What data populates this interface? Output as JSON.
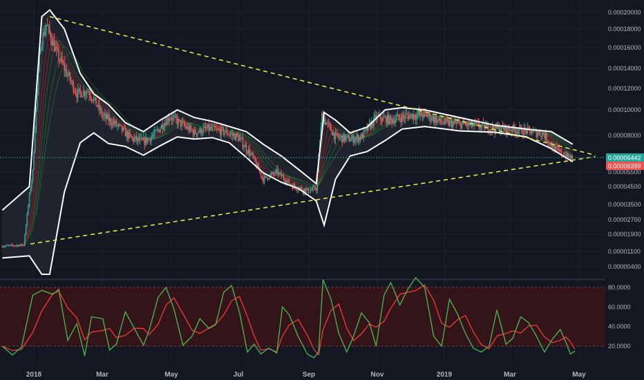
{
  "colors": {
    "background": "#131722",
    "grid": "#1e222d",
    "up": "#26a69a",
    "down": "#ef5350",
    "band": "#ffffff",
    "trendline": "#e8e850",
    "current_line": "#26a69a",
    "stoch_k": "#4caf50",
    "stoch_d": "#e53935",
    "stoch_zone": "#3a1518"
  },
  "chart_data": [
    {
      "type": "candlestick",
      "price_axis": {
        "ticks": [
          "0.00020000",
          "0.00018000",
          "0.00016000",
          "0.00014000",
          "0.00012000",
          "0.00010000",
          "0.00008000",
          "0.00005500",
          "0.00004500",
          "0.00003500",
          "0.00002700",
          "0.00001900",
          "0.00001100",
          "0.00000400"
        ],
        "tick_values": [
          0.0002,
          0.00018,
          0.00016,
          0.00014,
          0.00012,
          0.0001,
          8e-05,
          5.5e-05,
          4.5e-05,
          3.5e-05,
          2.7e-05,
          1.9e-05,
          1.1e-05,
          4e-06
        ]
      },
      "time_axis": {
        "labels": [
          "2018",
          "Mar",
          "May",
          "Jul",
          "Sep",
          "Nov",
          "2019",
          "Mar",
          "May"
        ],
        "major": [
          "2018",
          "2019"
        ]
      },
      "current_price": {
        "value": "0.00006442"
      },
      "secondary_price": {
        "value": "0.00006399"
      },
      "trendlines": [
        {
          "name": "upper-trendline",
          "from": [
            "2018-01-12",
            0.000195
          ],
          "to": [
            "2019-05-10",
            6.65e-05
          ]
        },
        {
          "name": "lower-trendline",
          "from": [
            "2017-12-26",
            1.45e-05
          ],
          "to": [
            "2019-05-10",
            6.55e-05
          ]
        }
      ],
      "close_path": [
        [
          "2017-12-01",
          1.35e-05
        ],
        [
          "2017-12-20",
          1.4e-05
        ],
        [
          "2017-12-28",
          5.5e-05
        ],
        [
          "2018-01-04",
          0.000165
        ],
        [
          "2018-01-09",
          0.000185
        ],
        [
          "2018-01-18",
          0.000155
        ],
        [
          "2018-01-25",
          0.00014
        ],
        [
          "2018-02-05",
          0.000115
        ],
        [
          "2018-02-15",
          0.000118
        ],
        [
          "2018-02-28",
          9.5e-05
        ],
        [
          "2018-03-10",
          8.95e-05
        ],
        [
          "2018-03-25",
          7.8e-05
        ],
        [
          "2018-04-05",
          7.55e-05
        ],
        [
          "2018-04-15",
          8.1e-05
        ],
        [
          "2018-04-28",
          9.5e-05
        ],
        [
          "2018-05-10",
          8.8e-05
        ],
        [
          "2018-05-20",
          8.2e-05
        ],
        [
          "2018-06-01",
          8.55e-05
        ],
        [
          "2018-06-15",
          8.3e-05
        ],
        [
          "2018-06-28",
          7.85e-05
        ],
        [
          "2018-07-10",
          6.6e-05
        ],
        [
          "2018-07-20",
          5e-05
        ],
        [
          "2018-08-01",
          5.5e-05
        ],
        [
          "2018-08-15",
          4.55e-05
        ],
        [
          "2018-08-28",
          4.25e-05
        ],
        [
          "2018-09-05",
          4.4e-05
        ],
        [
          "2018-09-10",
          9.5e-05
        ],
        [
          "2018-09-22",
          7.9e-05
        ],
        [
          "2018-10-05",
          7.75e-05
        ],
        [
          "2018-10-15",
          7.9e-05
        ],
        [
          "2018-10-28",
          9.4e-05
        ],
        [
          "2018-11-10",
          9.2e-05
        ],
        [
          "2018-11-25",
          9.55e-05
        ],
        [
          "2018-12-10",
          9.65e-05
        ],
        [
          "2018-12-25",
          9e-05
        ],
        [
          "2019-01-10",
          8.9e-05
        ],
        [
          "2019-01-25",
          8.75e-05
        ],
        [
          "2019-02-10",
          8.55e-05
        ],
        [
          "2019-02-25",
          8.5e-05
        ],
        [
          "2019-03-10",
          8.35e-05
        ],
        [
          "2019-03-25",
          8.1e-05
        ],
        [
          "2019-04-05",
          7e-05
        ],
        [
          "2019-04-15",
          6.55e-05
        ],
        [
          "2019-04-20",
          6.44e-05
        ]
      ],
      "upper_band": [
        [
          "2017-12-01",
          3.2e-05
        ],
        [
          "2017-12-25",
          4.5e-05
        ],
        [
          "2018-01-05",
          0.000195
        ],
        [
          "2018-01-12",
          0.000203
        ],
        [
          "2018-01-25",
          0.00018
        ],
        [
          "2018-02-08",
          0.000135
        ],
        [
          "2018-02-20",
          0.000115
        ],
        [
          "2018-03-05",
          0.000105
        ],
        [
          "2018-03-20",
          9e-05
        ],
        [
          "2018-04-05",
          8.3e-05
        ],
        [
          "2018-04-20",
          9.2e-05
        ],
        [
          "2018-05-05",
          0.0001
        ],
        [
          "2018-05-20",
          9.4e-05
        ],
        [
          "2018-06-05",
          9.1e-05
        ],
        [
          "2018-06-20",
          8.7e-05
        ],
        [
          "2018-07-05",
          8.3e-05
        ],
        [
          "2018-07-20",
          7.4e-05
        ],
        [
          "2018-08-05",
          6.6e-05
        ],
        [
          "2018-08-20",
          5.7e-05
        ],
        [
          "2018-09-05",
          4.7e-05
        ],
        [
          "2018-09-12",
          9.8e-05
        ],
        [
          "2018-09-22",
          9.2e-05
        ],
        [
          "2018-10-05",
          8.2e-05
        ],
        [
          "2018-10-20",
          8.65e-05
        ],
        [
          "2018-11-05",
          0.0001
        ],
        [
          "2018-11-20",
          0.000102
        ],
        [
          "2018-12-10",
          0.0001
        ],
        [
          "2019-01-10",
          9.4e-05
        ],
        [
          "2019-02-10",
          8.8e-05
        ],
        [
          "2019-03-10",
          8.5e-05
        ],
        [
          "2019-04-01",
          8.3e-05
        ],
        [
          "2019-04-20",
          7.4e-05
        ]
      ],
      "lower_band": [
        [
          "2017-12-01",
          8e-06
        ],
        [
          "2017-12-25",
          9e-06
        ],
        [
          "2018-01-05",
          5e-07
        ],
        [
          "2018-01-12",
          5e-07
        ],
        [
          "2018-01-25",
          4.2e-05
        ],
        [
          "2018-02-08",
          7.5e-05
        ],
        [
          "2018-02-20",
          8.2e-05
        ],
        [
          "2018-03-05",
          7.45e-05
        ],
        [
          "2018-03-20",
          7.25e-05
        ],
        [
          "2018-04-05",
          6.65e-05
        ],
        [
          "2018-04-20",
          7.3e-05
        ],
        [
          "2018-05-05",
          7.9e-05
        ],
        [
          "2018-05-20",
          7.75e-05
        ],
        [
          "2018-06-05",
          7.85e-05
        ],
        [
          "2018-06-20",
          7.5e-05
        ],
        [
          "2018-07-05",
          6.5e-05
        ],
        [
          "2018-07-20",
          5.45e-05
        ],
        [
          "2018-08-05",
          4.8e-05
        ],
        [
          "2018-08-20",
          4.4e-05
        ],
        [
          "2018-09-05",
          3.7e-05
        ],
        [
          "2018-09-12",
          2.4e-05
        ],
        [
          "2018-09-22",
          5e-05
        ],
        [
          "2018-10-05",
          6.6e-05
        ],
        [
          "2018-10-20",
          6.9e-05
        ],
        [
          "2018-11-05",
          7.65e-05
        ],
        [
          "2018-11-20",
          8.5e-05
        ],
        [
          "2018-12-10",
          8.7e-05
        ],
        [
          "2019-01-10",
          8.35e-05
        ],
        [
          "2019-02-10",
          8.25e-05
        ],
        [
          "2019-03-10",
          7.9e-05
        ],
        [
          "2019-04-01",
          7.1e-05
        ],
        [
          "2019-04-20",
          6.2e-05
        ]
      ]
    },
    {
      "type": "line",
      "name": "stochastic-oscillator",
      "y_ticks": [
        "80.0000",
        "60.0000",
        "40.0000",
        "20.0000"
      ],
      "y_tick_values": [
        80,
        60,
        40,
        20
      ],
      "ylim": [
        0,
        100
      ],
      "overbought": 80,
      "oversold": 20,
      "k_line": [
        [
          "2017-12-01",
          20
        ],
        [
          "2017-12-10",
          11
        ],
        [
          "2017-12-18",
          19
        ],
        [
          "2017-12-28",
          72
        ],
        [
          "2018-01-05",
          77
        ],
        [
          "2018-01-15",
          73
        ],
        [
          "2018-01-20",
          78
        ],
        [
          "2018-01-28",
          26
        ],
        [
          "2018-02-05",
          43
        ],
        [
          "2018-02-12",
          10
        ],
        [
          "2018-02-18",
          50
        ],
        [
          "2018-02-28",
          48
        ],
        [
          "2018-03-06",
          16
        ],
        [
          "2018-03-12",
          22
        ],
        [
          "2018-03-20",
          55
        ],
        [
          "2018-03-28",
          38
        ],
        [
          "2018-04-05",
          21
        ],
        [
          "2018-04-10",
          36
        ],
        [
          "2018-04-18",
          70
        ],
        [
          "2018-04-25",
          80
        ],
        [
          "2018-05-02",
          58
        ],
        [
          "2018-05-10",
          21
        ],
        [
          "2018-05-18",
          30
        ],
        [
          "2018-05-25",
          48
        ],
        [
          "2018-06-02",
          38
        ],
        [
          "2018-06-08",
          42
        ],
        [
          "2018-06-15",
          75
        ],
        [
          "2018-06-22",
          82
        ],
        [
          "2018-06-29",
          55
        ],
        [
          "2018-07-06",
          14
        ],
        [
          "2018-07-12",
          22
        ],
        [
          "2018-07-18",
          12
        ],
        [
          "2018-07-25",
          18
        ],
        [
          "2018-08-01",
          13
        ],
        [
          "2018-08-06",
          60
        ],
        [
          "2018-08-12",
          52
        ],
        [
          "2018-08-20",
          30
        ],
        [
          "2018-08-28",
          12
        ],
        [
          "2018-09-03",
          8
        ],
        [
          "2018-09-07",
          14
        ],
        [
          "2018-09-11",
          88
        ],
        [
          "2018-09-18",
          68
        ],
        [
          "2018-09-25",
          33
        ],
        [
          "2018-10-02",
          14
        ],
        [
          "2018-10-08",
          30
        ],
        [
          "2018-10-15",
          54
        ],
        [
          "2018-10-22",
          44
        ],
        [
          "2018-10-28",
          20
        ],
        [
          "2018-11-04",
          72
        ],
        [
          "2018-11-10",
          85
        ],
        [
          "2018-11-18",
          62
        ],
        [
          "2018-11-25",
          78
        ],
        [
          "2018-12-02",
          90
        ],
        [
          "2018-12-10",
          80
        ],
        [
          "2018-12-18",
          30
        ],
        [
          "2018-12-25",
          20
        ],
        [
          "2019-01-01",
          68
        ],
        [
          "2019-01-08",
          53
        ],
        [
          "2019-01-15",
          33
        ],
        [
          "2019-01-22",
          18
        ],
        [
          "2019-01-29",
          14
        ],
        [
          "2019-02-05",
          20
        ],
        [
          "2019-02-12",
          57
        ],
        [
          "2019-02-20",
          22
        ],
        [
          "2019-02-26",
          28
        ],
        [
          "2019-03-05",
          50
        ],
        [
          "2019-03-12",
          44
        ],
        [
          "2019-03-19",
          30
        ],
        [
          "2019-03-26",
          14
        ],
        [
          "2019-04-02",
          27
        ],
        [
          "2019-04-09",
          37
        ],
        [
          "2019-04-14",
          24
        ],
        [
          "2019-04-18",
          12
        ],
        [
          "2019-04-22",
          15
        ]
      ]
    }
  ]
}
